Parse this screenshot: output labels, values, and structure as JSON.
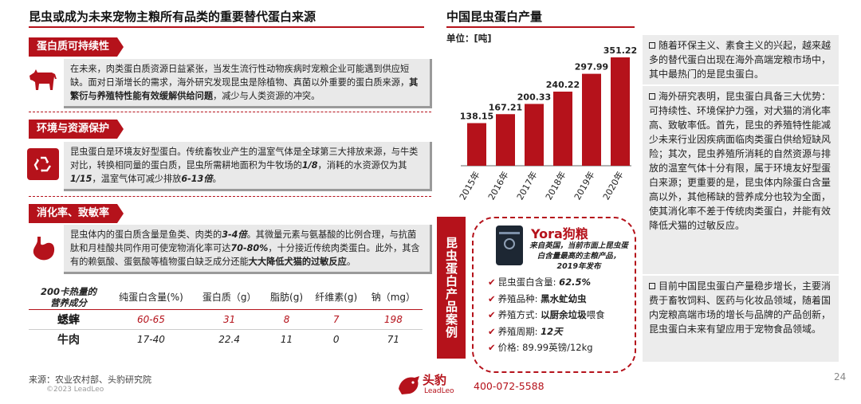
{
  "left": {
    "title": "昆虫或成为未来宠物主粮所有品类的重要替代蛋白来源",
    "sections": [
      {
        "tab": "蛋白质可持续性",
        "icon": "cow-icon",
        "text_a": "在未来，肉类蛋白质资源日益紧张，当发生流行性动物疾病时宠粮企业可能遇到供应短缺。面对日渐增长的需求，海外研究发现昆虫是除植物、真菌以外重要的蛋白质来源，",
        "text_bold": "其繁衍与养殖特性能有效缓解供给问题",
        "text_b": "，减少与人类资源的冲突。"
      },
      {
        "tab": "环境与资源保护",
        "icon": "recycle-icon",
        "text_a": "昆虫蛋白是环境友好型蛋白。传统畜牧业产生的温室气体是全球第三大排放来源，与牛类对比，转换相同量的蛋白质，昆虫所需耕地面积为牛牧场的",
        "frac1": "1/8",
        "text_b": "，消耗的水资源仅为其",
        "frac2": "1/15",
        "text_c": "，温室气体可减少排放",
        "range": "6-13倍",
        "text_d": "。"
      },
      {
        "tab": "消化率、致敏率",
        "icon": "stomach-icon",
        "text_a": "昆虫体内的蛋白质含量是鱼类、肉类的",
        "mult": "3-4倍",
        "text_b": "。其微量元素与氨基酸的比例合理，与抗菌肽和月桂酸共同作用可使宠物消化率可达",
        "pct": "70-80%",
        "text_c": "，十分接近传统肉类蛋白。此外，其含有的赖氨酸、蛋氨酸等植物蛋白缺乏成分还能",
        "bold_end": "大大降低犬猫的过敏反应",
        "text_d": "。"
      }
    ],
    "table": {
      "corner_line1": "200卡热量的",
      "corner_line2": "营养成分",
      "headers": [
        "纯蛋白含量(%)",
        "蛋白质（g）",
        "脂肪(g)",
        "纤维素(g)",
        "钠（mg）"
      ],
      "rows": [
        {
          "name": "蟋蟀",
          "values": [
            "60-65",
            "31",
            "8",
            "7",
            "198"
          ]
        },
        {
          "name": "牛肉",
          "values": [
            "17-40",
            "22.4",
            "11",
            "0",
            "71"
          ]
        }
      ]
    },
    "source": "来源：农业农村部、头豹研究院",
    "copyright": "©2023 LeadLeo"
  },
  "chart_data": {
    "type": "bar",
    "title": "中国昆虫蛋白产量",
    "unit_label": "单位：[吨]",
    "categories": [
      "2015年",
      "2016年",
      "2017年",
      "2018年",
      "2019年",
      "2020年"
    ],
    "values": [
      138.15,
      167.21,
      200.33,
      240.22,
      297.99,
      351.22
    ],
    "value_labels": [
      "138.15",
      "167.21",
      "200.33",
      "240.22",
      "297.99",
      "351.22"
    ],
    "ylim": [
      0,
      351.22
    ],
    "color": "#b5121b",
    "grid": false
  },
  "case": {
    "bar_label": "昆虫蛋白产品案例",
    "brand": "Yora狗粮",
    "desc": "来自英国，当前市面上昆虫蛋白含量最高的主粮产品，2019年发布",
    "items": [
      {
        "label": "昆虫蛋白含量:",
        "value": "62.5%"
      },
      {
        "label": "养殖品种:",
        "value": "黑水虻幼虫"
      },
      {
        "label": "养殖方式:",
        "value": "以厨余垃圾",
        "suffix": "喂食"
      },
      {
        "label": "养殖周期:",
        "value": "12天"
      },
      {
        "label": "价格:",
        "value": "89.99英镑/12kg"
      }
    ]
  },
  "right": {
    "bullets": [
      "随着环保主义、素食主义的兴起，越来越多的替代蛋白出现在海外高端宠粮市场中，其中最热门的是昆虫蛋白。",
      "海外研究表明，昆虫蛋白具备三大优势：可持续性、环境保护力强，对犬猫的消化率高、致敏率低。首先，昆虫的养殖特性能减少未来行业因疾病面临肉类蛋白供给短缺风险；其次，昆虫养殖所消耗的自然资源与排放的温室气体十分有限，属于环境友好型蛋白来源；更重要的是，昆虫体内除蛋白含量高以外，其他稀缺的营养成分也较为全面，使其消化率不差于传统肉类蛋白，并能有效降低犬猫的过敏反应。",
      "目前中国昆虫蛋白产量稳步增长，主要消费于畜牧饲料、医药与化妆品领域，随着国内宠粮高端市场的增长与品牌的产品创新，昆虫蛋白未来有望应用于宠物食品领域。"
    ]
  },
  "footer": {
    "logo_cn": "头豹",
    "logo_en": "LeadLeo",
    "phone": "400-072-5588",
    "page": "24"
  }
}
